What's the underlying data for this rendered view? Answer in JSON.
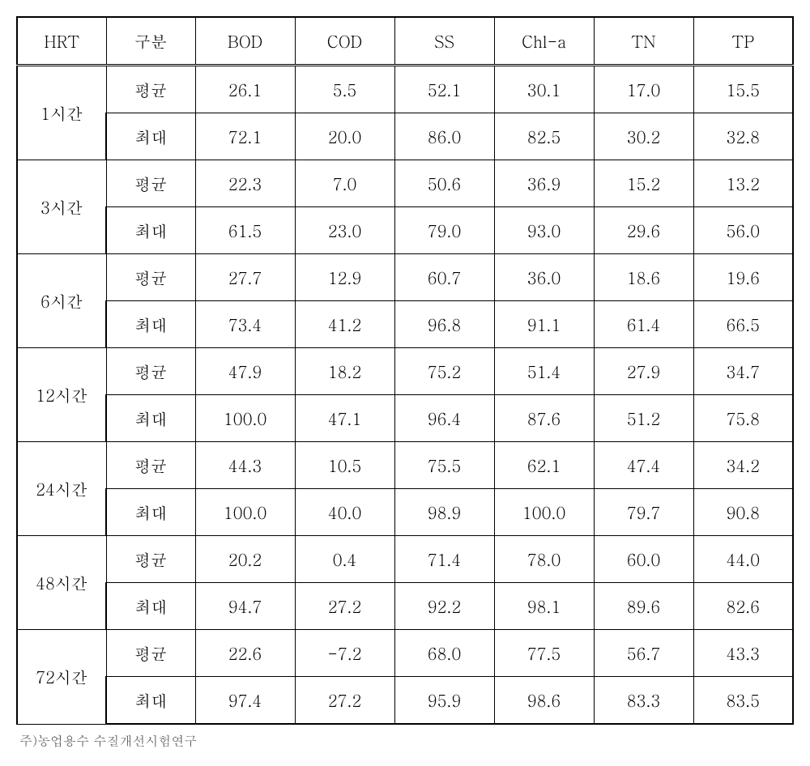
{
  "columns": [
    "HRT",
    "구분",
    "BOD",
    "COD",
    "SS",
    "Chl-a",
    "TN",
    "TP"
  ],
  "column_widths": [
    "110px",
    "110px",
    "123px",
    "123px",
    "123px",
    "123px",
    "123px",
    "123px"
  ],
  "rowLabels": {
    "avg": "평균",
    "max": "최대"
  },
  "groups": [
    {
      "hrt": "1시간",
      "avg": [
        "26.1",
        "5.5",
        "52.1",
        "30.1",
        "17.0",
        "15.5"
      ],
      "max": [
        "72.1",
        "20.0",
        "86.0",
        "82.5",
        "30.2",
        "32.8"
      ]
    },
    {
      "hrt": "3시간",
      "avg": [
        "22.3",
        "7.0",
        "50.6",
        "36.9",
        "15.2",
        "13.2"
      ],
      "max": [
        "61.5",
        "23.0",
        "79.0",
        "93.0",
        "29.6",
        "56.0"
      ]
    },
    {
      "hrt": "6시간",
      "avg": [
        "27.7",
        "12.9",
        "60.7",
        "36.0",
        "18.6",
        "19.6"
      ],
      "max": [
        "73.4",
        "41.2",
        "96.8",
        "91.1",
        "61.4",
        "66.5"
      ]
    },
    {
      "hrt": "12시간",
      "avg": [
        "47.9",
        "18.2",
        "75.2",
        "51.4",
        "27.9",
        "34.7"
      ],
      "max": [
        "100.0",
        "47.1",
        "96.4",
        "87.6",
        "51.2",
        "75.8"
      ]
    },
    {
      "hrt": "24시간",
      "avg": [
        "44.3",
        "10.5",
        "75.5",
        "62.1",
        "47.4",
        "34.2"
      ],
      "max": [
        "100.0",
        "40.0",
        "98.9",
        "100.0",
        "79.7",
        "90.8"
      ]
    },
    {
      "hrt": "48시간",
      "avg": [
        "20.2",
        "0.4",
        "71.4",
        "78.0",
        "60.0",
        "44.0"
      ],
      "max": [
        "94.7",
        "27.2",
        "92.2",
        "98.1",
        "89.6",
        "82.6"
      ]
    },
    {
      "hrt": "72시간",
      "avg": [
        "22.6",
        "-7.2",
        "68.0",
        "77.5",
        "56.7",
        "43.3"
      ],
      "max": [
        "97.4",
        "27.2",
        "95.9",
        "98.6",
        "83.3",
        "83.5"
      ]
    }
  ],
  "footnote": "주)농업용수 수질개선시험연구",
  "styles": {
    "font_family": "Batang, 바탕, serif",
    "cell_fontsize": 20,
    "footnote_fontsize": 16,
    "border_color": "#000000",
    "background_color": "#ffffff",
    "text_color": "#000000",
    "footnote_color": "#555555",
    "outer_border_width": 2,
    "inner_border_width": 1,
    "header_separator": "double"
  }
}
